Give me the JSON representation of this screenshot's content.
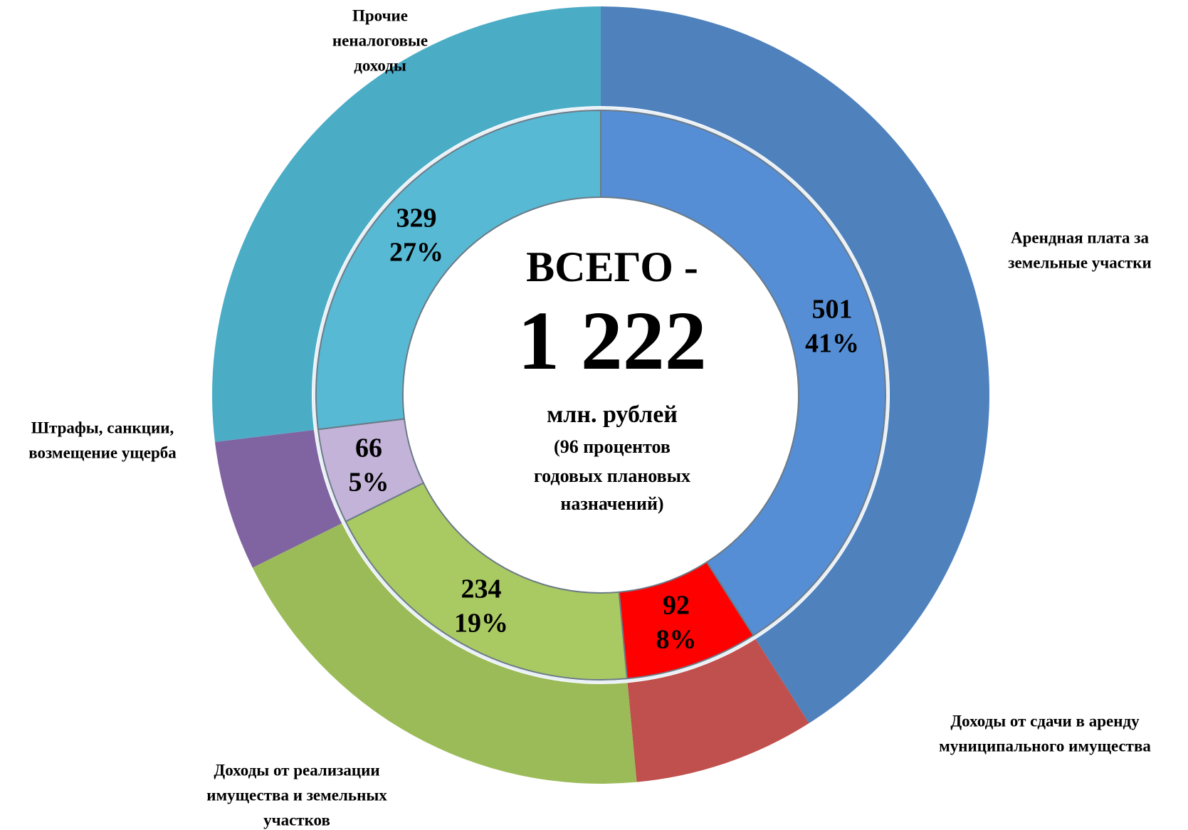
{
  "chart_data": {
    "type": "donut",
    "categories": [
      [
        "Арендная плата за",
        "земельные участки"
      ],
      [
        "Доходы от сдачи в аренду",
        "муниципального имущества"
      ],
      [
        "Доходы от реализации",
        "имущества и земельных",
        "участков"
      ],
      [
        "Штрафы, санкции,",
        "возмещение ущерба"
      ],
      [
        "Прочие",
        "неналоговые",
        "доходы"
      ]
    ],
    "values": [
      501,
      92,
      234,
      66,
      329
    ],
    "percent_values": [
      41,
      8,
      19,
      5,
      27
    ],
    "percent_labels": [
      "41%",
      "8%",
      "19%",
      "5%",
      "27%"
    ],
    "outer_colors": [
      "#4f81bd",
      "#c0504d",
      "#9bbb59",
      "#8064a2",
      "#4bacc6"
    ],
    "inner_colors": [
      "#558ed5",
      "#ff0000",
      "#a9c963",
      "#c3b3d9",
      "#57b9d4"
    ],
    "center_text": [
      "ВСЕГО -",
      "1 222",
      "млн. рублей",
      "(96 процентов",
      "годовых плановых",
      "назначений)"
    ]
  }
}
